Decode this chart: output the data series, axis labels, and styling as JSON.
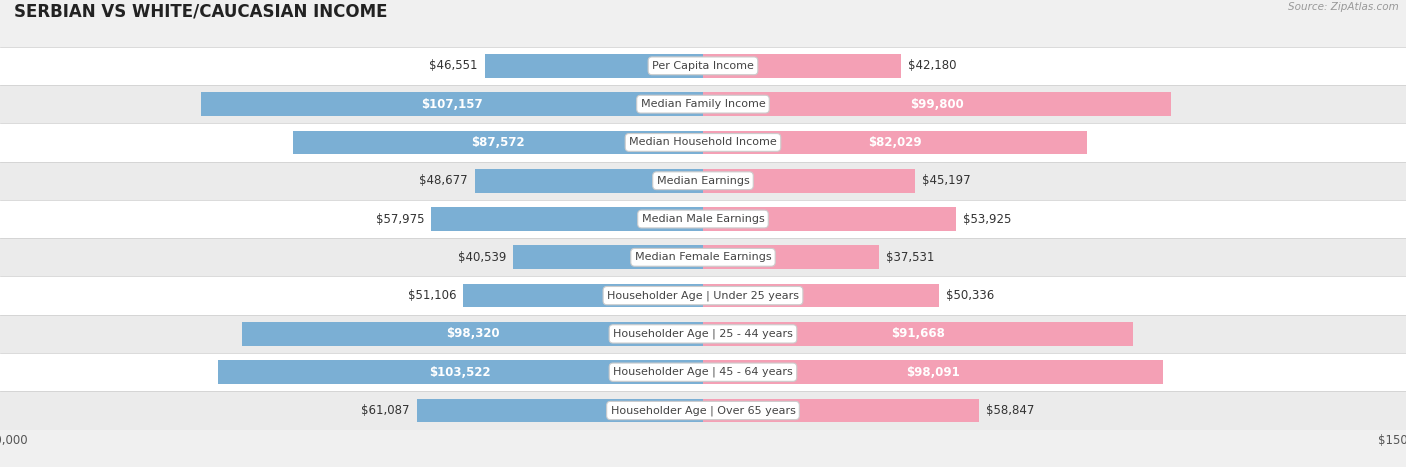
{
  "title": "SERBIAN VS WHITE/CAUCASIAN INCOME",
  "source": "Source: ZipAtlas.com",
  "categories": [
    "Per Capita Income",
    "Median Family Income",
    "Median Household Income",
    "Median Earnings",
    "Median Male Earnings",
    "Median Female Earnings",
    "Householder Age | Under 25 years",
    "Householder Age | 25 - 44 years",
    "Householder Age | 45 - 64 years",
    "Householder Age | Over 65 years"
  ],
  "serbian_values": [
    46551,
    107157,
    87572,
    48677,
    57975,
    40539,
    51106,
    98320,
    103522,
    61087
  ],
  "white_values": [
    42180,
    99800,
    82029,
    45197,
    53925,
    37531,
    50336,
    91668,
    98091,
    58847
  ],
  "serbian_labels": [
    "$46,551",
    "$107,157",
    "$87,572",
    "$48,677",
    "$57,975",
    "$40,539",
    "$51,106",
    "$98,320",
    "$103,522",
    "$61,087"
  ],
  "white_labels": [
    "$42,180",
    "$99,800",
    "$82,029",
    "$45,197",
    "$53,925",
    "$37,531",
    "$50,336",
    "$91,668",
    "$98,091",
    "$58,847"
  ],
  "serbian_color": "#7bafd4",
  "white_color": "#f4a0b5",
  "max_value": 150000,
  "bar_height": 0.62,
  "background_color": "#f0f0f0",
  "label_fontsize": 8.5,
  "category_fontsize": 8.0,
  "title_fontsize": 12,
  "inside_label_threshold": 65000,
  "label_padding": 1500
}
